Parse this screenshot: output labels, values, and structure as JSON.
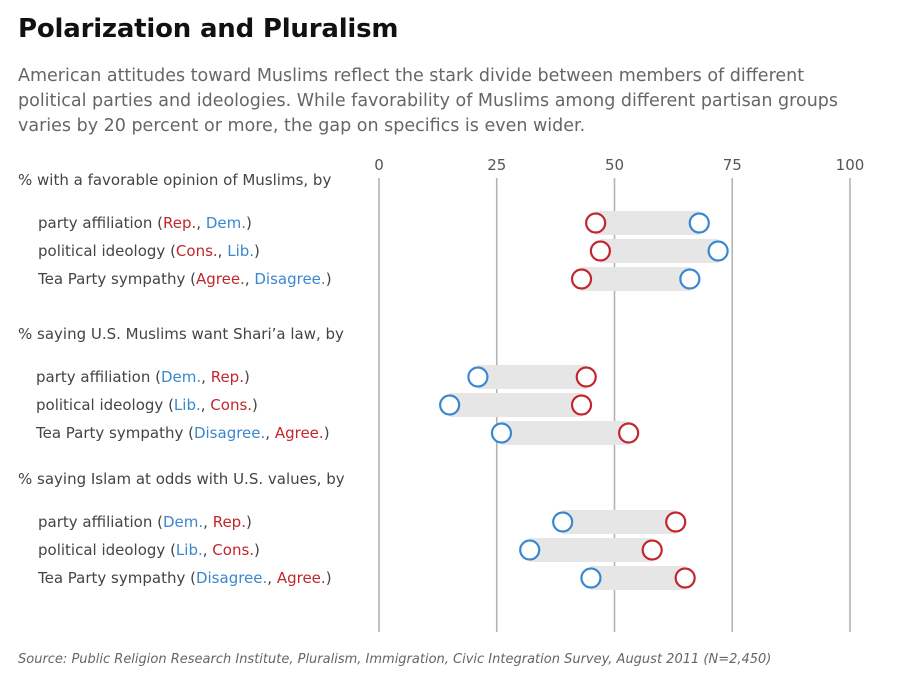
{
  "title": "Polarization and Pluralism",
  "subtitle": "American attitudes toward Muslims reflect the stark divide between members of different political parties and ideologies. While favorability of Muslims among different partisan groups varies by 20 percent or more, the gap on specifics is even wider.",
  "source": "Source: Public Religion Research Institute, Pluralism, Immigration, Civic Integration Survey, August 2011 (N=2,450)",
  "colors": {
    "red": "#c1272d",
    "blue": "#3a87d0",
    "gap": "#e6e6e6",
    "grid": "#b3b3b3",
    "text": "#444444"
  },
  "chart_data": {
    "type": "dot",
    "x_ticks": [
      0,
      25,
      50,
      75,
      100
    ],
    "xlim": [
      0,
      100
    ],
    "grid": true,
    "groups": [
      {
        "title": "% with a favorable opinion of Muslims, by",
        "rows": [
          {
            "label": "party affiliation",
            "first": {
              "name": "Rep.",
              "color": "red",
              "value": 46
            },
            "second": {
              "name": "Dem.",
              "color": "blue",
              "value": 68
            }
          },
          {
            "label": "political ideology",
            "first": {
              "name": "Cons.",
              "color": "red",
              "value": 47
            },
            "second": {
              "name": "Lib.",
              "color": "blue",
              "value": 72
            }
          },
          {
            "label": "Tea Party sympathy",
            "first": {
              "name": "Agree.",
              "color": "red",
              "value": 43
            },
            "second": {
              "name": "Disagree.",
              "color": "blue",
              "value": 66
            }
          }
        ]
      },
      {
        "title": "% saying U.S. Muslims want Shari’a law, by",
        "rows": [
          {
            "label": "party affiliation",
            "first": {
              "name": "Dem.",
              "color": "blue",
              "value": 21
            },
            "second": {
              "name": "Rep.",
              "color": "red",
              "value": 44
            }
          },
          {
            "label": "political ideology",
            "first": {
              "name": "Lib.",
              "color": "blue",
              "value": 15
            },
            "second": {
              "name": "Cons.",
              "color": "red",
              "value": 43
            }
          },
          {
            "label": "Tea Party sympathy",
            "first": {
              "name": "Disagree.",
              "color": "blue",
              "value": 26
            },
            "second": {
              "name": "Agree.",
              "color": "red",
              "value": 53
            }
          }
        ]
      },
      {
        "title": "% saying Islam at odds with U.S. values, by",
        "rows": [
          {
            "label": "party affiliation",
            "first": {
              "name": "Dem.",
              "color": "blue",
              "value": 39
            },
            "second": {
              "name": "Rep.",
              "color": "red",
              "value": 63
            }
          },
          {
            "label": "political ideology",
            "first": {
              "name": "Lib.",
              "color": "blue",
              "value": 32
            },
            "second": {
              "name": "Cons.",
              "color": "red",
              "value": 58
            }
          },
          {
            "label": "Tea Party sympathy",
            "first": {
              "name": "Disagree.",
              "color": "blue",
              "value": 45
            },
            "second": {
              "name": "Agree.",
              "color": "red",
              "value": 65
            }
          }
        ]
      }
    ]
  }
}
